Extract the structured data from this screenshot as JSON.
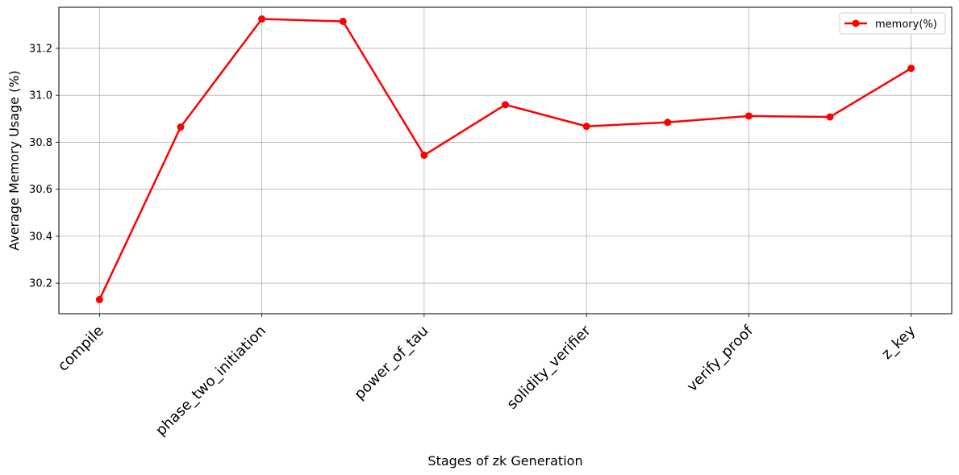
{
  "chart_data": {
    "type": "line",
    "title": "",
    "xlabel": "Stages of zk Generation",
    "ylabel": "Average Memory Usage (%)",
    "x_tick_labels": [
      "compile",
      "phase_two_initiation",
      "power_of_tau",
      "solidity_verifier",
      "verify_proof",
      "z_key"
    ],
    "x_tick_positions": [
      0,
      2,
      4,
      6,
      8,
      10
    ],
    "xlim": [
      -0.5,
      10.5
    ],
    "ylim": [
      30.07,
      31.375
    ],
    "y_ticks": [
      30.2,
      30.4,
      30.6,
      30.8,
      31.0,
      31.2
    ],
    "y_tick_labels": [
      "30.2",
      "30.4",
      "30.6",
      "30.8",
      "31.0",
      "31.2"
    ],
    "grid": true,
    "legend_position": "top-right",
    "series": [
      {
        "name": "memory(%)",
        "color": "#ff0000",
        "marker": "circle",
        "x": [
          0,
          1,
          2,
          3,
          4,
          5,
          6,
          7,
          8,
          9,
          10
        ],
        "values": [
          30.13,
          30.865,
          31.325,
          31.315,
          30.745,
          30.96,
          30.868,
          30.885,
          30.912,
          30.908,
          31.115
        ]
      }
    ]
  }
}
